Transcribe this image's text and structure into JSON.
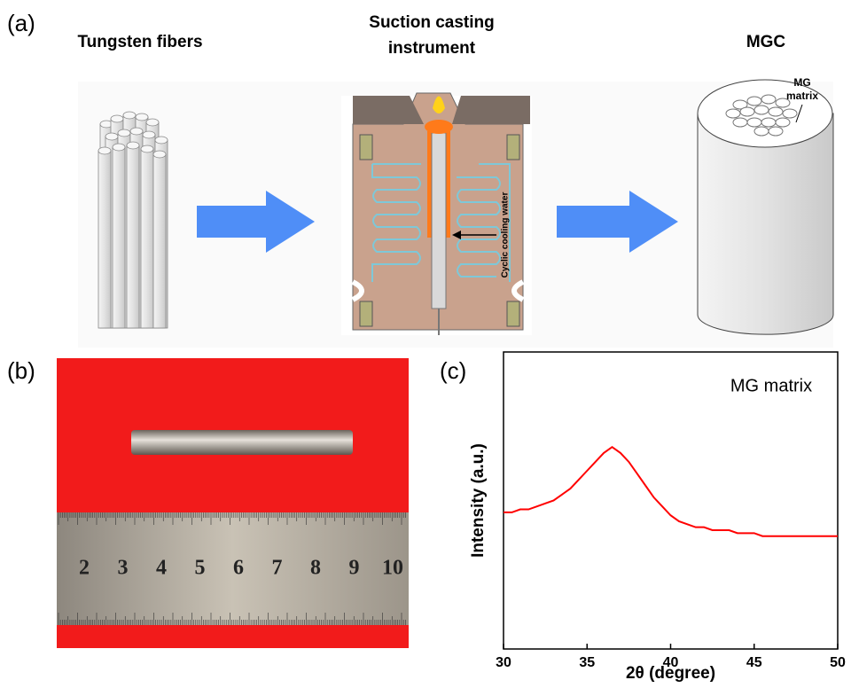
{
  "panel_a": {
    "label": "(a)",
    "fibers_title": "Tungsten fibers",
    "instrument_title": [
      "Suction casting",
      "instrument"
    ],
    "mgc_title": "MGC",
    "mg_matrix_label": [
      "MG",
      "matrix"
    ],
    "cooling_label": "Cyclic cooling water"
  },
  "panel_b": {
    "label": "(b)",
    "ruler_numbers": [
      "2",
      "3",
      "4",
      "5",
      "6",
      "7",
      "8",
      "9",
      "10"
    ]
  },
  "panel_c": {
    "label": "(c)"
  },
  "chart_data": {
    "type": "line",
    "annotation": "MG matrix",
    "xlabel": "2θ (degree)",
    "ylabel": "Intensity (a.u.)",
    "color": "#ff0000",
    "x": [
      30,
      30.5,
      31,
      31.5,
      32,
      32.5,
      33,
      33.5,
      34,
      34.5,
      35,
      35.5,
      36,
      36.5,
      37,
      37.5,
      38,
      38.5,
      39,
      39.5,
      40,
      40.5,
      41,
      41.5,
      42,
      42.5,
      43,
      43.5,
      44,
      44.5,
      45,
      45.5,
      46,
      46.5,
      47,
      47.5,
      48,
      48.5,
      49,
      49.5,
      50
    ],
    "values": [
      46,
      46,
      47,
      47,
      48,
      49,
      50,
      52,
      54,
      57,
      60,
      63,
      66,
      68,
      66,
      63,
      59,
      55,
      51,
      48,
      45,
      43,
      42,
      41,
      41,
      40,
      40,
      40,
      39,
      39,
      39,
      38,
      38,
      38,
      38,
      38,
      38,
      38,
      38,
      38,
      38
    ],
    "xlim": [
      30,
      50
    ],
    "ylim": [
      0,
      100
    ],
    "xticks": [
      30,
      35,
      40,
      45,
      50
    ]
  }
}
